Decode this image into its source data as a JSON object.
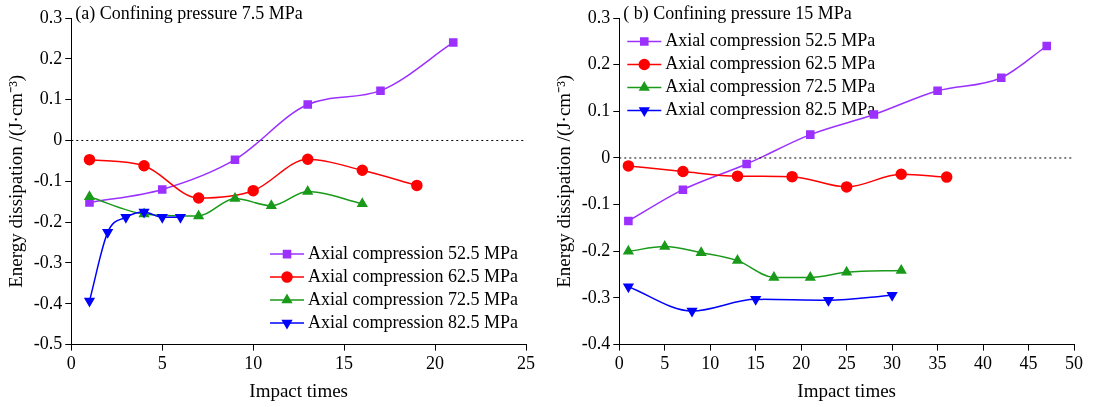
{
  "chart_data": [
    {
      "type": "line",
      "title": "(a) Confining pressure 7.5 MPa",
      "xlabel": "Impact times",
      "ylabel": "Energy dissipation /(J·cm⁻³)",
      "xlim": [
        0,
        25
      ],
      "xticks": [
        0,
        5,
        10,
        15,
        20,
        25
      ],
      "ylim": [
        -0.5,
        0.3
      ],
      "yticks": [
        -0.5,
        -0.4,
        -0.3,
        -0.2,
        -0.1,
        0,
        0.1,
        0.2,
        0.3
      ],
      "legend": "bottom right",
      "grid": false,
      "ref_lines": [
        {
          "axis": "y",
          "value": 0,
          "line_style": "dotted",
          "color": "#000000"
        }
      ],
      "series": [
        {
          "name": "Axial compression 52.5 MPa",
          "color": "#9b30ff",
          "marker": "square",
          "x": [
            1,
            5,
            9,
            13,
            17,
            21
          ],
          "values": [
            -0.152,
            -0.12,
            -0.047,
            0.088,
            0.122,
            0.24
          ]
        },
        {
          "name": "Axial compression 62.5 MPa",
          "color": "#ff0000",
          "marker": "circle",
          "x": [
            1,
            4,
            7,
            10,
            13,
            16,
            19
          ],
          "values": [
            -0.047,
            -0.062,
            -0.141,
            -0.123,
            -0.046,
            -0.073,
            -0.11
          ]
        },
        {
          "name": "Axial compression 72.5 MPa",
          "color": "#1a9a1a",
          "marker": "triangle",
          "x": [
            1,
            4,
            7,
            9,
            11,
            13,
            16
          ],
          "values": [
            -0.138,
            -0.18,
            -0.185,
            -0.142,
            -0.16,
            -0.125,
            -0.155
          ]
        },
        {
          "name": "Axial compression 82.5 MPa",
          "color": "#0000ff",
          "marker": "triangle-down",
          "x": [
            1,
            2,
            3,
            4,
            5,
            6
          ],
          "values": [
            -0.393,
            -0.225,
            -0.188,
            -0.175,
            -0.188,
            -0.188
          ]
        }
      ]
    },
    {
      "type": "line",
      "title": "( b) Confining pressure 15 MPa",
      "xlabel": "Impact times",
      "ylabel": "Energy dissipation /(J·cm⁻³)",
      "xlim": [
        0,
        50
      ],
      "xticks": [
        0,
        5,
        10,
        15,
        20,
        25,
        30,
        35,
        40,
        45,
        50
      ],
      "ylim": [
        -0.4,
        0.3
      ],
      "yticks": [
        -0.4,
        -0.3,
        -0.2,
        -0.1,
        0,
        0.1,
        0.2,
        0.3
      ],
      "legend": "top left",
      "grid": false,
      "ref_lines": [
        {
          "axis": "y",
          "value": 0,
          "line_style": "dotted",
          "color": "#000000"
        }
      ],
      "series": [
        {
          "name": "Axial compression 52.5 MPa",
          "color": "#9b30ff",
          "marker": "square",
          "x": [
            1,
            7,
            14,
            21,
            28,
            35,
            42,
            47
          ],
          "values": [
            -0.135,
            -0.068,
            -0.013,
            0.05,
            0.093,
            0.144,
            0.172,
            0.24
          ]
        },
        {
          "name": "Axial compression 62.5 MPa",
          "color": "#ff0000",
          "marker": "circle",
          "x": [
            1,
            7,
            13,
            19,
            25,
            31,
            36
          ],
          "values": [
            -0.017,
            -0.029,
            -0.039,
            -0.04,
            -0.062,
            -0.035,
            -0.041
          ]
        },
        {
          "name": "Axial compression 72.5 MPa",
          "color": "#1a9a1a",
          "marker": "triangle",
          "x": [
            1,
            5,
            9,
            13,
            17,
            21,
            25,
            31
          ],
          "values": [
            -0.2,
            -0.19,
            -0.203,
            -0.22,
            -0.256,
            -0.256,
            -0.245,
            -0.241
          ]
        },
        {
          "name": "Axial compression 82.5 MPa",
          "color": "#0000ff",
          "marker": "triangle-down",
          "x": [
            1,
            8,
            15,
            23,
            30
          ],
          "values": [
            -0.276,
            -0.328,
            -0.303,
            -0.305,
            -0.294
          ]
        }
      ]
    }
  ]
}
